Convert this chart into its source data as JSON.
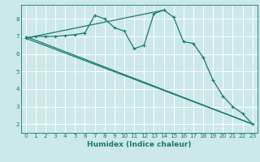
{
  "xlabel": "Humidex (Indice chaleur)",
  "xlim": [
    -0.5,
    23.5
  ],
  "ylim": [
    1.5,
    8.8
  ],
  "yticks": [
    2,
    3,
    4,
    5,
    6,
    7,
    8
  ],
  "xticks": [
    0,
    1,
    2,
    3,
    4,
    5,
    6,
    7,
    8,
    9,
    10,
    11,
    12,
    13,
    14,
    15,
    16,
    17,
    18,
    19,
    20,
    21,
    22,
    23
  ],
  "bg_color": "#cce8e8",
  "grid_color": "#ffffff",
  "line_color": "#1a7a6e",
  "lines": [
    {
      "x": [
        0,
        1,
        2,
        3,
        4,
        5,
        6,
        7,
        8,
        9,
        10,
        11,
        12,
        13,
        14,
        15,
        16,
        17,
        18,
        19,
        20,
        21,
        22,
        23
      ],
      "y": [
        6.9,
        7.0,
        7.0,
        7.0,
        7.05,
        7.1,
        7.2,
        8.2,
        8.0,
        7.5,
        7.3,
        6.3,
        6.5,
        8.3,
        8.5,
        8.1,
        6.7,
        6.6,
        5.8,
        4.5,
        3.6,
        3.0,
        2.6,
        2.0
      ],
      "has_markers": true
    },
    {
      "x": [
        0,
        23
      ],
      "y": [
        6.9,
        2.0
      ],
      "has_markers": false
    },
    {
      "x": [
        0,
        14
      ],
      "y": [
        6.9,
        8.5
      ],
      "has_markers": false
    },
    {
      "x": [
        0,
        23
      ],
      "y": [
        7.0,
        2.0
      ],
      "has_markers": false
    }
  ],
  "marker": "+",
  "markersize": 3.5,
  "markeredgewidth": 0.8,
  "linewidth": 0.9,
  "tick_fontsize": 5.2,
  "xlabel_fontsize": 6.5,
  "xlabel_fontweight": "bold"
}
